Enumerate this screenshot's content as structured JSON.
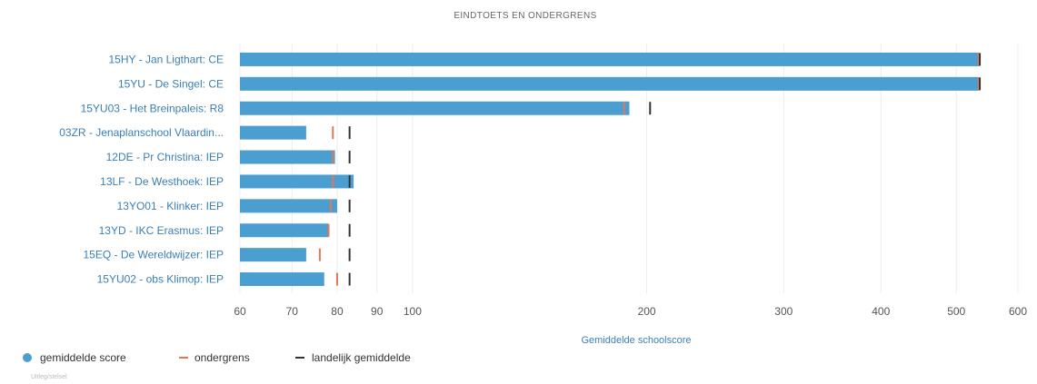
{
  "colors": {
    "bar": "#4a9fd0",
    "ondergrens": "#e0785a",
    "landelijk": "#333333",
    "grid": "#ececec",
    "axis_title": "#3a7fb5"
  },
  "chart_data": {
    "type": "bar",
    "orientation": "horizontal",
    "title": "EINDTOETS EN ONDERGRENS",
    "xlabel": "Gemiddelde schoolscore",
    "ylabel": "",
    "x_scale": "log",
    "xlim": [
      60,
      600
    ],
    "x_ticks": [
      60,
      70,
      80,
      90,
      100,
      200,
      300,
      400,
      500,
      600
    ],
    "grid": true,
    "legend_position": "bottom-left",
    "categories": [
      "15HY - Jan Ligthart: CE",
      "15YU - De Singel: CE",
      "15YU03 - Het Breinpaleis: R8",
      "03ZR - Jenaplanschool Vlaardin...",
      "12DE - Pr Christina: IEP",
      "13LF - De Westhoek: IEP",
      "13YO01 - Klinker: IEP",
      "13YD - IKC Erasmus: IEP",
      "15EQ - De Wereldwijzer: IEP",
      "15YU02 - obs Klimop: IEP"
    ],
    "series": [
      {
        "name": "gemiddelde score",
        "kind": "bar",
        "values": [
          535,
          535,
          190,
          73,
          79.5,
          84,
          80,
          78,
          73,
          77
        ]
      },
      {
        "name": "ondergrens",
        "kind": "marker",
        "values": [
          534,
          534,
          187,
          79,
          79,
          79,
          78.5,
          78,
          76,
          80
        ]
      },
      {
        "name": "landelijk gemiddelde",
        "kind": "marker",
        "values": [
          536,
          536,
          202,
          83,
          83,
          83,
          83,
          83,
          83,
          83
        ]
      }
    ]
  },
  "legend": {
    "items": [
      {
        "label": "gemiddelde score",
        "symbol": "circle"
      },
      {
        "label": "ondergrens",
        "symbol": "dash"
      },
      {
        "label": "landelijk gemiddelde",
        "symbol": "dash"
      }
    ]
  },
  "footer": {
    "text": "Uitleg/stelsel"
  }
}
